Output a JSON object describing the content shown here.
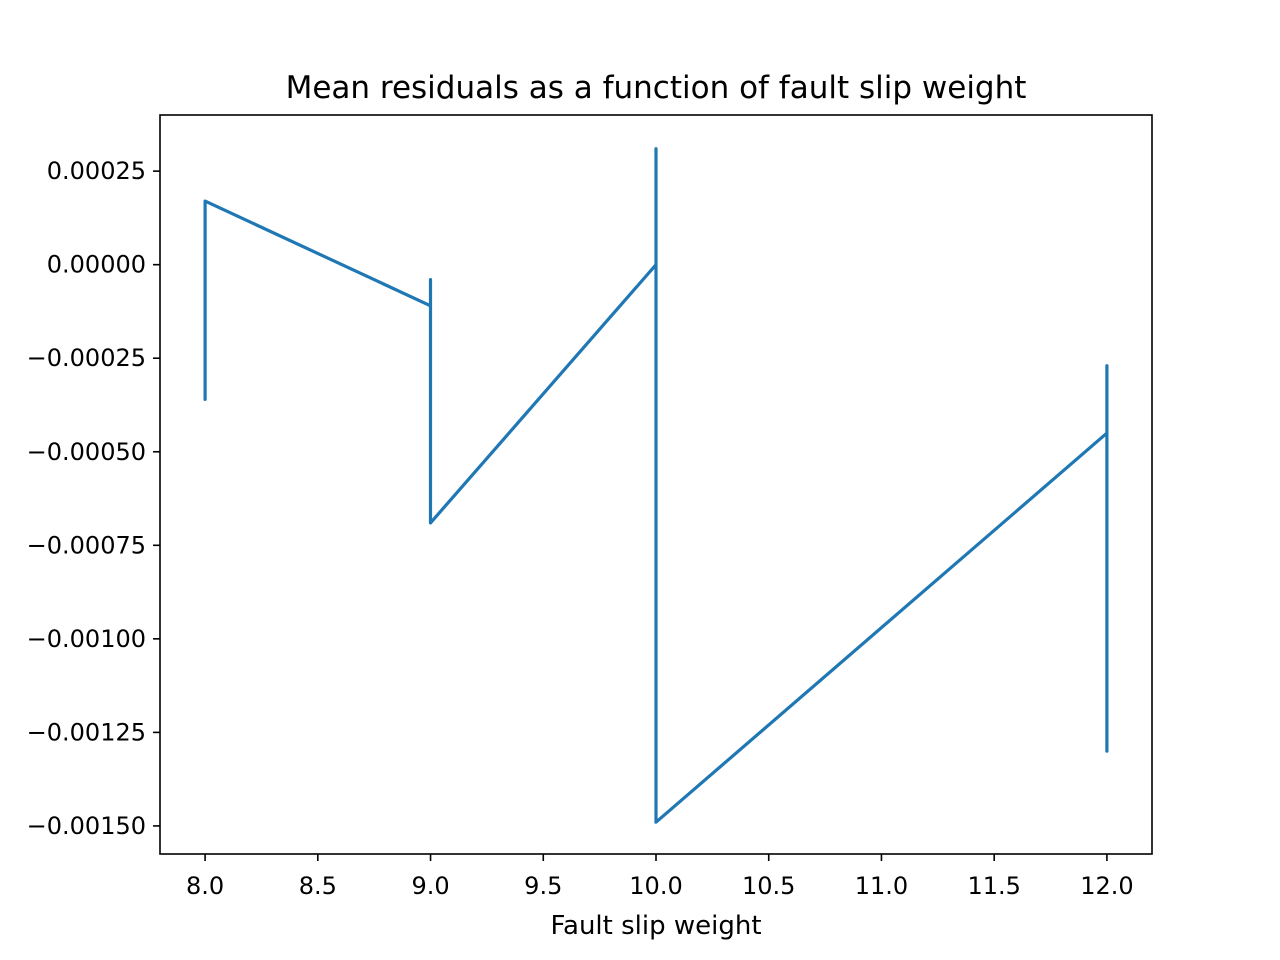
{
  "chart_data": {
    "type": "line",
    "title": "Mean residuals as a function of fault slip weight",
    "xlabel": "Fault slip weight",
    "ylabel": "",
    "xlim": [
      7.8,
      12.2
    ],
    "ylim": [
      -0.001575,
      0.0004
    ],
    "x_ticks": [
      8.0,
      8.5,
      9.0,
      9.5,
      10.0,
      10.5,
      11.0,
      11.5,
      12.0
    ],
    "x_tick_labels": [
      "8.0",
      "8.5",
      "9.0",
      "9.5",
      "10.0",
      "10.5",
      "11.0",
      "11.5",
      "12.0"
    ],
    "y_ticks": [
      0.00025,
      0.0,
      -0.00025,
      -0.0005,
      -0.00075,
      -0.001,
      -0.00125,
      -0.0015
    ],
    "y_tick_labels": [
      "0.00025",
      "0.00000",
      "−0.00025",
      "−0.00050",
      "−0.00075",
      "−0.00100",
      "−0.00125",
      "−0.00150"
    ],
    "grid": false,
    "legend": "none",
    "series": [
      {
        "color": "#1f77b4",
        "x": [
          8.0,
          8.0,
          8.0,
          9.0,
          9.0,
          9.0,
          9.0,
          10.0,
          10.0,
          10.0,
          12.0,
          12.0,
          12.0
        ],
        "y": [
          -0.00036,
          0.00017,
          0.00017,
          -0.00011,
          -4e-05,
          -0.00069,
          -0.00069,
          0.0,
          0.00031,
          -0.00149,
          -0.00045,
          -0.00027,
          -0.0013
        ]
      }
    ]
  }
}
